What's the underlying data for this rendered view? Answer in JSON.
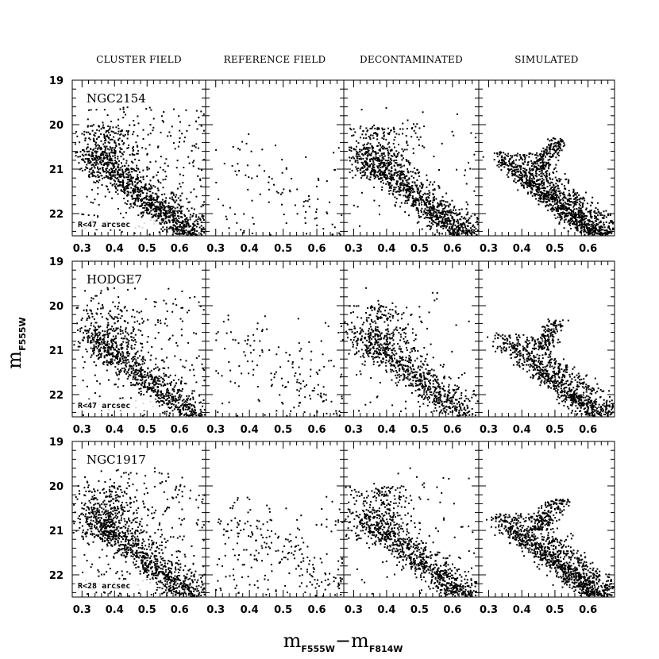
{
  "chart_data": {
    "type": "scatter",
    "column_titles": [
      "CLUSTER FIELD",
      "REFERENCE FIELD",
      "DECONTAMINATED",
      "SIMULATED"
    ],
    "xlabel": {
      "main": "m",
      "sub1": "F555W",
      "sep": "−",
      "main2": "m",
      "sub2": "F814W"
    },
    "ylabel": {
      "main": "m",
      "sub": "F555W"
    },
    "xlim": [
      0.27,
      0.68
    ],
    "ylim": [
      22.5,
      19.0
    ],
    "xticks": [
      0.3,
      0.4,
      0.5,
      0.6
    ],
    "yticks": [
      19,
      20,
      21,
      22
    ],
    "grid": false,
    "rows": [
      {
        "cluster": "NGC2154",
        "radius_label": "R<47 arcsec",
        "panels": [
          {
            "kind": "cluster",
            "n": 1500,
            "seed": 11
          },
          {
            "kind": "reference",
            "n": 110,
            "seed": 12
          },
          {
            "kind": "decontaminated",
            "n": 1300,
            "seed": 13
          },
          {
            "kind": "simulated",
            "n": 1400,
            "seed": 14
          }
        ]
      },
      {
        "cluster": "HODGE7",
        "radius_label": "R<47 arcsec",
        "panels": [
          {
            "kind": "cluster",
            "n": 1150,
            "seed": 21
          },
          {
            "kind": "reference",
            "n": 170,
            "seed": 22
          },
          {
            "kind": "decontaminated",
            "n": 1000,
            "seed": 23
          },
          {
            "kind": "simulated",
            "n": 1000,
            "seed": 24
          }
        ]
      },
      {
        "cluster": "NGC1917",
        "radius_label": "R<28 arcsec",
        "panels": [
          {
            "kind": "cluster",
            "n": 1400,
            "seed": 31
          },
          {
            "kind": "reference",
            "n": 260,
            "seed": 32
          },
          {
            "kind": "decontaminated",
            "n": 1050,
            "seed": 33
          },
          {
            "kind": "simulated",
            "n": 1300,
            "seed": 34
          }
        ]
      }
    ]
  }
}
